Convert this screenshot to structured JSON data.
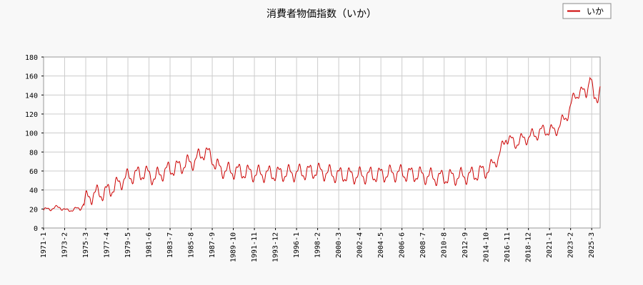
{
  "chart_data": {
    "type": "line",
    "title": "消費者物価指数（いか）",
    "xlabel": "",
    "ylabel": "",
    "ylim": [
      0,
      180
    ],
    "yticks": [
      0,
      20,
      40,
      60,
      80,
      100,
      120,
      140,
      160,
      180
    ],
    "xlim": [
      1971.0,
      2026.0
    ],
    "xticks": [
      "1971-1",
      "1973-2",
      "1975-3",
      "1977-4",
      "1979-5",
      "1981-6",
      "1983-7",
      "1985-8",
      "1987-9",
      "1989-10",
      "1991-11",
      "1993-12",
      "1996-1",
      "1998-2",
      "2000-3",
      "2002-4",
      "2004-5",
      "2006-6",
      "2008-7",
      "2010-8",
      "2012-9",
      "2014-10",
      "2016-11",
      "2018-12",
      "2021-1",
      "2023-2",
      "2025-3"
    ],
    "grid": true,
    "legend": {
      "position": "top-right"
    },
    "series": [
      {
        "name": "いか",
        "color": "#cc0000",
        "seasonal_amplitude": 7,
        "trend": [
          [
            1971.0,
            19
          ],
          [
            1972.0,
            21
          ],
          [
            1972.6,
            22
          ],
          [
            1973.3,
            18
          ],
          [
            1974.0,
            20
          ],
          [
            1974.6,
            20
          ],
          [
            1975.2,
            30
          ],
          [
            1976.0,
            36
          ],
          [
            1977.0,
            37
          ],
          [
            1978.0,
            43
          ],
          [
            1979.0,
            52
          ],
          [
            1980.0,
            56
          ],
          [
            1981.0,
            58
          ],
          [
            1982.0,
            53
          ],
          [
            1983.0,
            60
          ],
          [
            1984.0,
            63
          ],
          [
            1985.0,
            67
          ],
          [
            1986.0,
            71
          ],
          [
            1986.8,
            80
          ],
          [
            1987.6,
            76
          ],
          [
            1988.0,
            65
          ],
          [
            1989.0,
            60
          ],
          [
            1990.0,
            60
          ],
          [
            1992.0,
            57
          ],
          [
            1994.0,
            57
          ],
          [
            1996.0,
            58
          ],
          [
            1998.0,
            60
          ],
          [
            2000.0,
            56
          ],
          [
            2002.0,
            55
          ],
          [
            2004.0,
            56
          ],
          [
            2006.0,
            58
          ],
          [
            2008.0,
            56
          ],
          [
            2010.0,
            53
          ],
          [
            2012.0,
            54
          ],
          [
            2013.5,
            56
          ],
          [
            2015.0,
            62
          ],
          [
            2016.0,
            75
          ],
          [
            2016.7,
            96
          ],
          [
            2017.5,
            89
          ],
          [
            2018.5,
            94
          ],
          [
            2019.5,
            98
          ],
          [
            2020.5,
            103
          ],
          [
            2021.5,
            102
          ],
          [
            2022.0,
            108
          ],
          [
            2022.5,
            115
          ],
          [
            2023.0,
            125
          ],
          [
            2023.5,
            140
          ],
          [
            2024.0,
            143
          ],
          [
            2024.6,
            142
          ],
          [
            2025.0,
            160
          ],
          [
            2025.4,
            135
          ],
          [
            2025.8,
            140
          ],
          [
            2026.0,
            148
          ]
        ]
      }
    ]
  }
}
